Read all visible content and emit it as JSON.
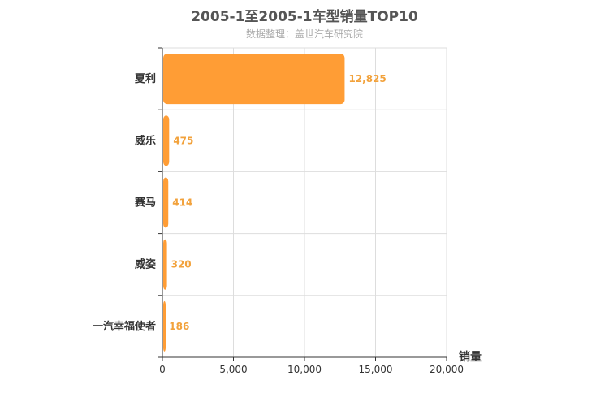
{
  "chart_data": {
    "type": "bar",
    "orientation": "horizontal",
    "title": "2005-1至2005-1车型销量TOP10",
    "subtitle": "数据整理：盖世汽车研究院",
    "xlabel": "销量",
    "ylabel": "",
    "categories": [
      "夏利",
      "威乐",
      "赛马",
      "威姿",
      "一汽幸福使者"
    ],
    "values": [
      12825,
      475,
      414,
      320,
      186
    ],
    "value_labels": [
      "12,825",
      "475",
      "414",
      "320",
      "186"
    ],
    "xlim": [
      0,
      20000
    ],
    "xticks": [
      0,
      5000,
      10000,
      15000,
      20000
    ],
    "xtick_labels": [
      "0",
      "5,000",
      "10,000",
      "15,000",
      "20,000"
    ],
    "grid": true,
    "colors": {
      "bar": "#ff9d35",
      "value_label": "#f2a23c",
      "grid": "#dddddd",
      "axis": "#333333"
    }
  }
}
